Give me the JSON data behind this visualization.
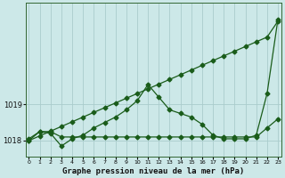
{
  "title": "Graphe pression niveau de la mer (hPa)",
  "xlabel_hours": [
    0,
    1,
    2,
    3,
    4,
    5,
    6,
    7,
    8,
    9,
    10,
    11,
    12,
    13,
    14,
    15,
    16,
    17,
    18,
    19,
    20,
    21,
    22,
    23
  ],
  "line_diagonal": [
    1018.0,
    1018.13,
    1018.26,
    1018.39,
    1018.52,
    1018.65,
    1018.78,
    1018.91,
    1019.04,
    1019.17,
    1019.3,
    1019.43,
    1019.56,
    1019.69,
    1019.82,
    1019.95,
    1020.08,
    1020.21,
    1020.34,
    1020.47,
    1020.6,
    1020.73,
    1020.86,
    1021.3
  ],
  "line_peak": [
    1018.05,
    1018.25,
    1018.2,
    1017.85,
    1018.05,
    1018.15,
    1018.35,
    1018.5,
    1018.65,
    1018.85,
    1019.1,
    1019.55,
    1019.2,
    1018.85,
    1018.75,
    1018.65,
    1018.45,
    1018.15,
    1018.05,
    1018.05,
    1018.05,
    1018.15,
    1019.3,
    1021.35
  ],
  "line_flat": [
    1018.0,
    1018.25,
    1018.25,
    1018.1,
    1018.1,
    1018.1,
    1018.1,
    1018.1,
    1018.1,
    1018.1,
    1018.1,
    1018.1,
    1018.1,
    1018.1,
    1018.1,
    1018.1,
    1018.1,
    1018.1,
    1018.1,
    1018.1,
    1018.1,
    1018.1,
    1018.35,
    1018.6
  ],
  "ylim_min": 1017.55,
  "ylim_max": 1021.8,
  "yticks": [
    1018,
    1019
  ],
  "bg_color": "#cce8e8",
  "grid_color": "#aacccc",
  "line_color": "#1a5c1a",
  "marker_size": 2.5
}
